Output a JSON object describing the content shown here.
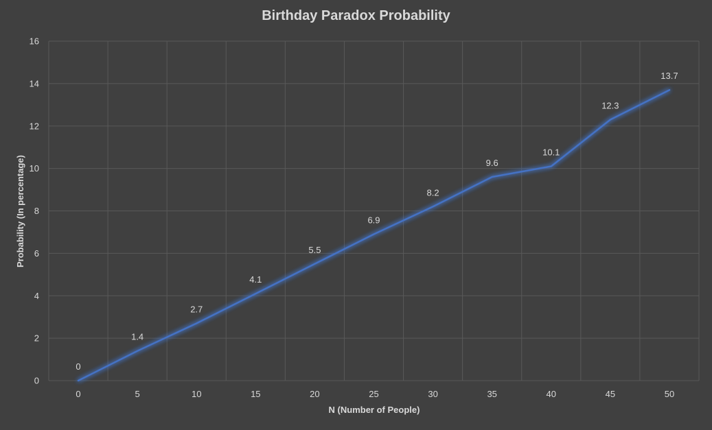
{
  "chart_data": {
    "type": "line",
    "title": "Birthday Paradox Probability",
    "xlabel": "N (Number of People)",
    "ylabel": "Probability (In percentage)",
    "x": [
      0,
      5,
      10,
      15,
      20,
      25,
      30,
      35,
      40,
      45,
      50
    ],
    "series": [
      {
        "values": [
          0,
          1.4,
          2.7,
          4.1,
          5.5,
          6.9,
          8.2,
          9.6,
          10.1,
          12.3,
          13.7
        ],
        "data_labels": [
          "0",
          "1.4",
          "2.7",
          "4.1",
          "5.5",
          "6.9",
          "8.2",
          "9.6",
          "10.1",
          "12.3",
          "13.7"
        ],
        "color": "#4472c4"
      }
    ],
    "x_ticks": [
      "0",
      "5",
      "10",
      "15",
      "20",
      "25",
      "30",
      "35",
      "40",
      "45",
      "50"
    ],
    "y_ticks": [
      "0",
      "2",
      "4",
      "6",
      "8",
      "10",
      "12",
      "14",
      "16"
    ],
    "ylim": [
      0,
      16
    ],
    "grid": true,
    "legend": "none"
  },
  "colors": {
    "background": "#404040",
    "gridline": "#595959",
    "text": "#d9d9d9",
    "line": "#4472c4"
  }
}
